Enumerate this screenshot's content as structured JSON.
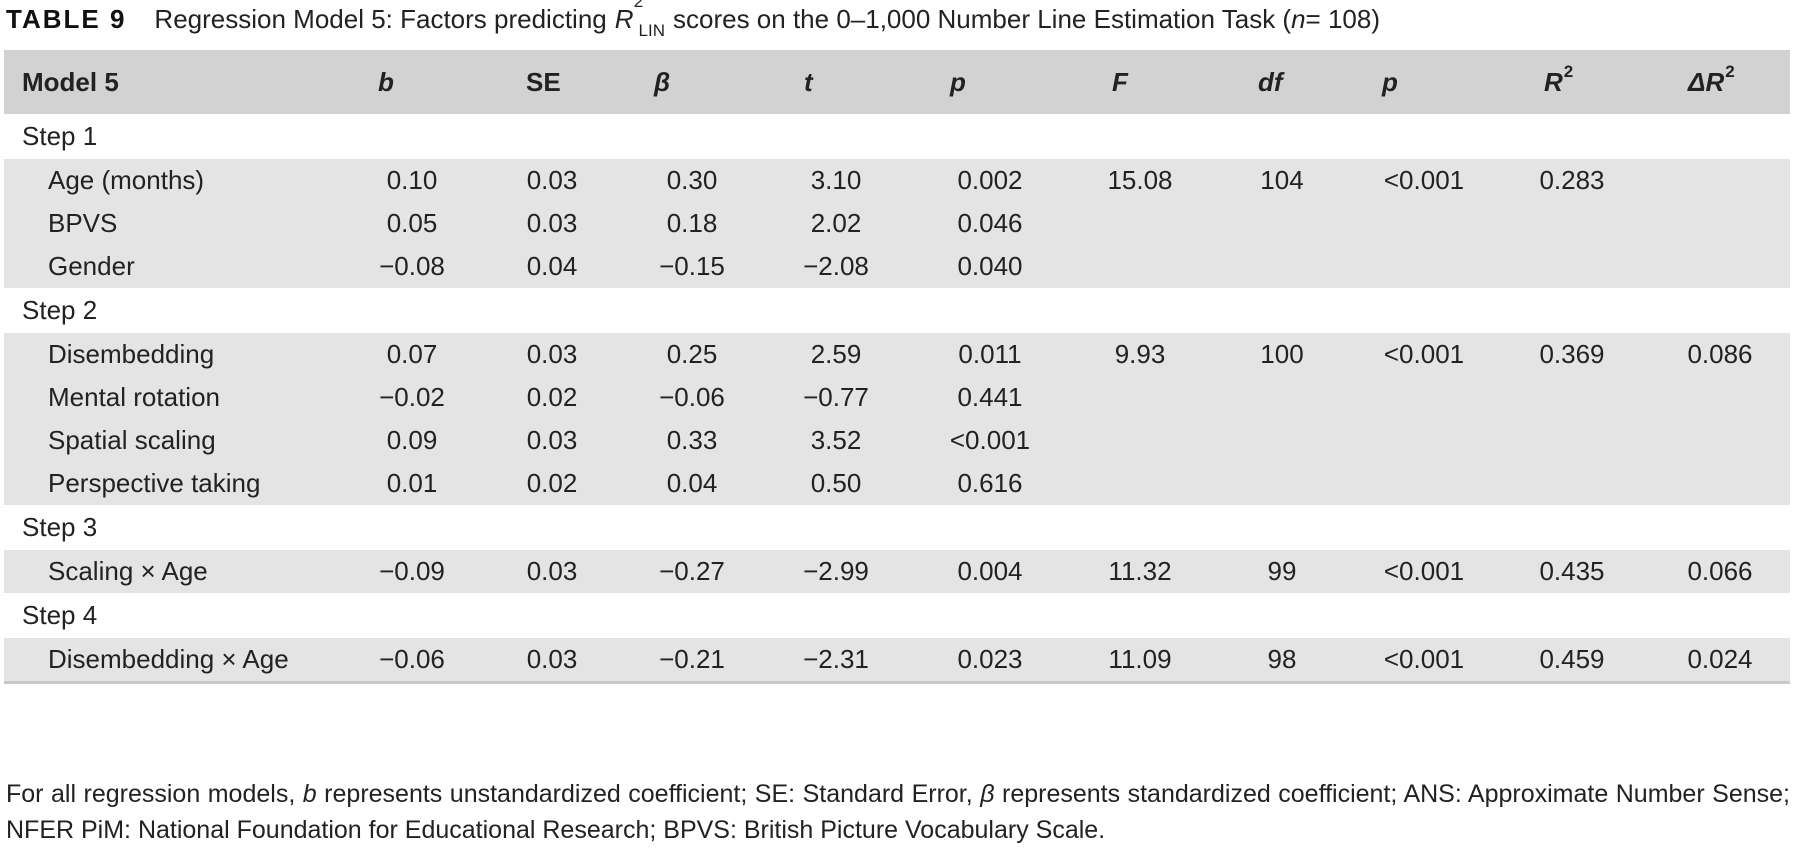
{
  "caption": {
    "label": "TABLE 9",
    "text_before": "Regression Model 5: Factors predicting",
    "r_letter": "R",
    "r_sup": "2",
    "r_sub": "LIN",
    "text_after": "scores on the 0–1,000 Number Line Estimation Task (",
    "n_symbol": "n",
    "n_value": " = 108)"
  },
  "header": {
    "model": "Model 5",
    "b": "b",
    "se": "SE",
    "beta": "β",
    "t": "t",
    "p": "p",
    "F": "F",
    "df": "df",
    "p2": "p",
    "R2": "R",
    "R2_sup": "2",
    "dR2": "ΔR",
    "dR2_sup": "2"
  },
  "rows": [
    {
      "type": "step",
      "label": "Step 1"
    },
    {
      "type": "data",
      "label": "Age (months)",
      "b": "0.10",
      "se": "0.03",
      "beta": "0.30",
      "t": "3.10",
      "p": "0.002",
      "F": "15.08",
      "df": "104",
      "p2": "<0.001",
      "R2": "0.283",
      "dR2": ""
    },
    {
      "type": "data",
      "label": "BPVS",
      "b": "0.05",
      "se": "0.03",
      "beta": "0.18",
      "t": "2.02",
      "p": "0.046",
      "F": "",
      "df": "",
      "p2": "",
      "R2": "",
      "dR2": ""
    },
    {
      "type": "data",
      "label": "Gender",
      "b": "−0.08",
      "se": "0.04",
      "beta": "−0.15",
      "t": "−2.08",
      "p": "0.040",
      "F": "",
      "df": "",
      "p2": "",
      "R2": "",
      "dR2": ""
    },
    {
      "type": "step",
      "label": "Step 2"
    },
    {
      "type": "data",
      "label": "Disembedding",
      "b": "0.07",
      "se": "0.03",
      "beta": "0.25",
      "t": "2.59",
      "p": "0.011",
      "F": "9.93",
      "df": "100",
      "p2": "<0.001",
      "R2": "0.369",
      "dR2": "0.086"
    },
    {
      "type": "data",
      "label": "Mental rotation",
      "b": "−0.02",
      "se": "0.02",
      "beta": "−0.06",
      "t": "−0.77",
      "p": "0.441",
      "F": "",
      "df": "",
      "p2": "",
      "R2": "",
      "dR2": ""
    },
    {
      "type": "data",
      "label": "Spatial scaling",
      "b": "0.09",
      "se": "0.03",
      "beta": "0.33",
      "t": "3.52",
      "p": "<0.001",
      "F": "",
      "df": "",
      "p2": "",
      "R2": "",
      "dR2": ""
    },
    {
      "type": "data",
      "label": "Perspective taking",
      "b": "0.01",
      "se": "0.02",
      "beta": "0.04",
      "t": "0.50",
      "p": "0.616",
      "F": "",
      "df": "",
      "p2": "",
      "R2": "",
      "dR2": ""
    },
    {
      "type": "step",
      "label": "Step 3"
    },
    {
      "type": "data",
      "label": "Scaling × Age",
      "b": "−0.09",
      "se": "0.03",
      "beta": "−0.27",
      "t": "−2.99",
      "p": "0.004",
      "F": "11.32",
      "df": "99",
      "p2": "<0.001",
      "R2": "0.435",
      "dR2": "0.066"
    },
    {
      "type": "step",
      "label": "Step 4"
    },
    {
      "type": "data",
      "label": "Disembedding × Age",
      "b": "−0.06",
      "se": "0.03",
      "beta": "−0.21",
      "t": "−2.31",
      "p": "0.023",
      "F": "11.09",
      "df": "98",
      "p2": "<0.001",
      "R2": "0.459",
      "dR2": "0.024"
    }
  ],
  "footnote": {
    "t1": "For all regression models, ",
    "b": "b",
    "t2": " represents unstandardized coefficient; SE: Standard Error, ",
    "beta": "β",
    "t3": " represents standardized coefficient; ANS: Approximate Number Sense; NFER PiM: National Foundation for Educational Research; BPVS: British Picture Vocabulary Scale."
  }
}
